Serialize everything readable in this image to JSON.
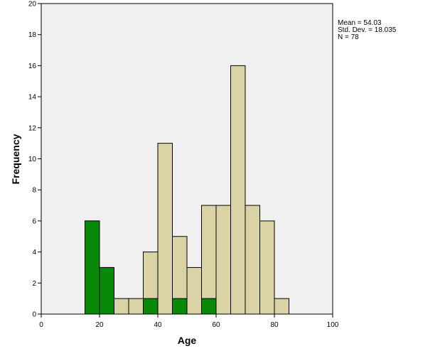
{
  "chart_data": {
    "type": "bar",
    "subtype": "histogram",
    "xlabel": "Age",
    "ylabel": "Frequency",
    "xlim": [
      0,
      100
    ],
    "ylim": [
      0,
      20
    ],
    "x_ticks": [
      0,
      20,
      40,
      60,
      80,
      100
    ],
    "y_ticks": [
      0,
      2,
      4,
      6,
      8,
      10,
      12,
      14,
      16,
      18,
      20
    ],
    "bins": [
      {
        "start": 15,
        "end": 20,
        "total": 6,
        "highlighted": 6
      },
      {
        "start": 20,
        "end": 25,
        "total": 3,
        "highlighted": 3
      },
      {
        "start": 25,
        "end": 30,
        "total": 1,
        "highlighted": 0
      },
      {
        "start": 30,
        "end": 35,
        "total": 1,
        "highlighted": 0
      },
      {
        "start": 35,
        "end": 40,
        "total": 4,
        "highlighted": 1
      },
      {
        "start": 40,
        "end": 45,
        "total": 11,
        "highlighted": 0
      },
      {
        "start": 45,
        "end": 50,
        "total": 5,
        "highlighted": 1
      },
      {
        "start": 50,
        "end": 55,
        "total": 3,
        "highlighted": 0
      },
      {
        "start": 55,
        "end": 60,
        "total": 7,
        "highlighted": 1
      },
      {
        "start": 60,
        "end": 65,
        "total": 7,
        "highlighted": 0
      },
      {
        "start": 65,
        "end": 70,
        "total": 16,
        "highlighted": 0
      },
      {
        "start": 70,
        "end": 75,
        "total": 7,
        "highlighted": 0
      },
      {
        "start": 75,
        "end": 80,
        "total": 6,
        "highlighted": 0
      },
      {
        "start": 80,
        "end": 85,
        "total": 1,
        "highlighted": 0
      }
    ],
    "stats": [
      "Mean = 54.03",
      "Std. Dev. = 18.035",
      "N = 78"
    ],
    "colors": {
      "plot_background": "#f0f0f0",
      "bar_fill": "#d9d3a5",
      "highlight_fill": "#088a08",
      "bar_stroke": "#000000"
    },
    "grid": false,
    "legend": "none"
  }
}
